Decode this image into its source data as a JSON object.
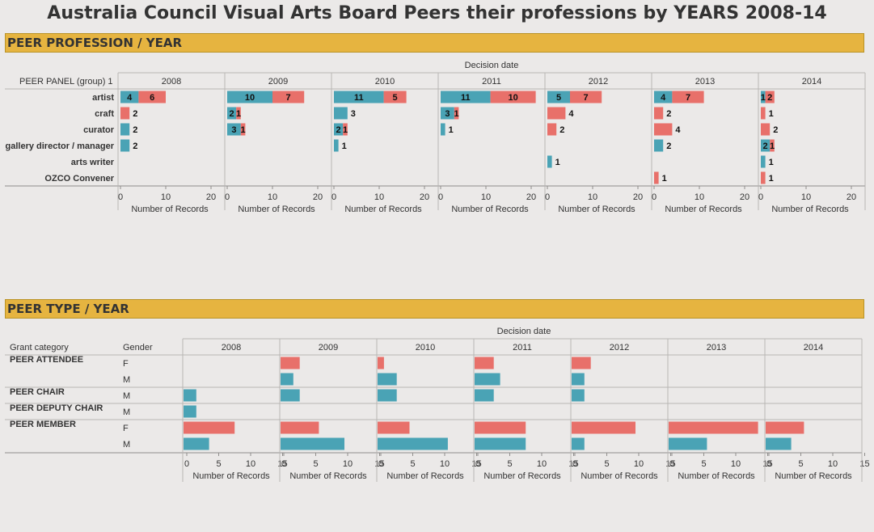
{
  "title": "Australia Council Visual Arts Board Peers their professions by YEARS 2008-14",
  "colors": {
    "teal": "#4aa3b5",
    "red": "#e8706a",
    "header_bar": "#e6b440"
  },
  "chart_data": [
    {
      "section_title": "PEER PROFESSION / YEAR",
      "type": "bar",
      "orientation": "horizontal",
      "stacked": true,
      "column_header": "Decision date",
      "row_header": "PEER PANEL (group) 1",
      "years": [
        "2008",
        "2009",
        "2010",
        "2011",
        "2012",
        "2013",
        "2014"
      ],
      "categories": [
        "artist",
        "craft",
        "curator",
        "gallery director / manager",
        "arts writer",
        "OZCO Convener"
      ],
      "xlabel": "Number of Records",
      "xlim": [
        0,
        23
      ],
      "ticks": [
        0,
        10,
        20
      ],
      "series_colors": [
        "#4aa3b5",
        "#e8706a"
      ],
      "values": {
        "2008": [
          [
            4,
            6
          ],
          [
            0,
            2
          ],
          [
            2,
            0
          ],
          [
            2,
            0
          ],
          [
            0,
            0
          ],
          [
            0,
            0
          ]
        ],
        "2009": [
          [
            10,
            7
          ],
          [
            2,
            1
          ],
          [
            3,
            1
          ],
          [
            0,
            0
          ],
          [
            0,
            0
          ],
          [
            0,
            0
          ]
        ],
        "2010": [
          [
            11,
            5
          ],
          [
            3,
            0
          ],
          [
            2,
            1
          ],
          [
            1,
            0
          ],
          [
            0,
            0
          ],
          [
            0,
            0
          ]
        ],
        "2011": [
          [
            11,
            10
          ],
          [
            3,
            1
          ],
          [
            1,
            0
          ],
          [
            0,
            0
          ],
          [
            0,
            0
          ],
          [
            0,
            0
          ]
        ],
        "2012": [
          [
            5,
            7
          ],
          [
            0,
            4
          ],
          [
            0,
            2
          ],
          [
            0,
            0
          ],
          [
            1,
            0
          ],
          [
            0,
            0
          ]
        ],
        "2013": [
          [
            4,
            7
          ],
          [
            0,
            2
          ],
          [
            0,
            4
          ],
          [
            2,
            0
          ],
          [
            0,
            0
          ],
          [
            0,
            1
          ]
        ],
        "2014": [
          [
            1,
            2
          ],
          [
            0,
            1
          ],
          [
            0,
            2
          ],
          [
            2,
            1
          ],
          [
            1,
            0
          ],
          [
            0,
            1
          ]
        ]
      }
    },
    {
      "section_title": "PEER TYPE / YEAR",
      "type": "bar",
      "orientation": "horizontal",
      "column_header": "Decision date",
      "row_headers": [
        "Grant category",
        "Gender"
      ],
      "years": [
        "2008",
        "2009",
        "2010",
        "2011",
        "2012",
        "2013",
        "2014"
      ],
      "groups": [
        {
          "name": "PEER ATTENDEE",
          "genders": [
            "F",
            "M"
          ]
        },
        {
          "name": "PEER CHAIR",
          "genders": [
            "M"
          ]
        },
        {
          "name": "PEER DEPUTY CHAIR",
          "genders": [
            "M"
          ]
        },
        {
          "name": "PEER MEMBER",
          "genders": [
            "F",
            "M"
          ]
        }
      ],
      "gender_colors": {
        "F": "#e8706a",
        "M": "#4aa3b5"
      },
      "xlabel": "Number of Records",
      "xlim": [
        0,
        16
      ],
      "ticks": [
        0,
        5,
        10,
        15
      ],
      "values": {
        "2008": [
          0,
          0,
          2,
          2,
          8,
          4
        ],
        "2009": [
          3,
          2,
          3,
          0,
          6,
          10
        ],
        "2010": [
          1,
          3,
          3,
          0,
          5,
          11
        ],
        "2011": [
          3,
          4,
          3,
          0,
          8,
          8
        ],
        "2012": [
          3,
          2,
          2,
          0,
          10,
          2
        ],
        "2013": [
          0,
          0,
          0,
          0,
          14,
          6
        ],
        "2014": [
          0,
          0,
          0,
          0,
          6,
          4
        ]
      }
    }
  ]
}
